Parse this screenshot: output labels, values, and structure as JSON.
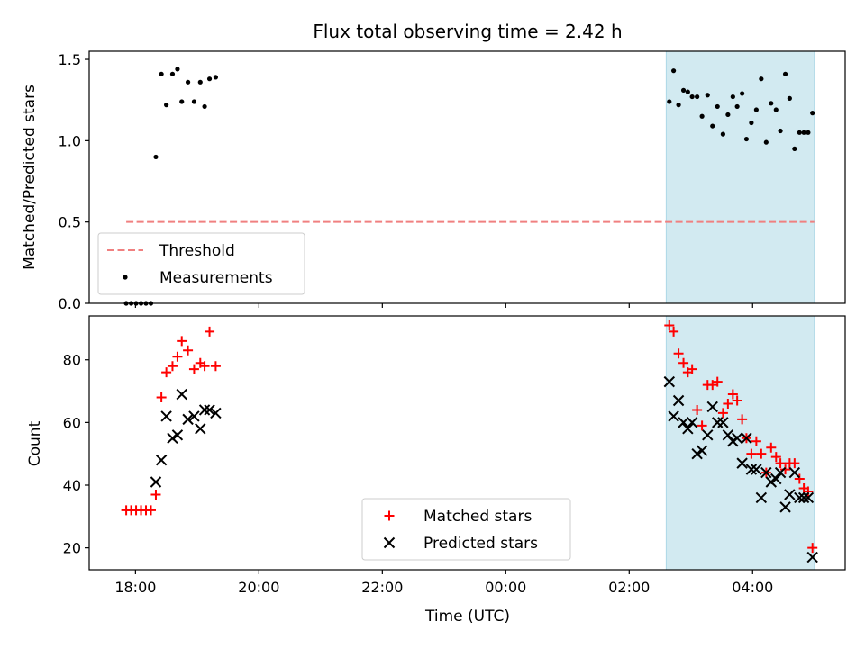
{
  "chart_data": {
    "type": "scatter",
    "title": "Flux total observing time = 2.42 h",
    "xlabel": "Time (UTC)",
    "x_unit": "hours since 18:00 UTC",
    "xlim": [
      -0.75,
      11.5
    ],
    "xticks": [
      0,
      2,
      4,
      6,
      8,
      10
    ],
    "xtick_labels": [
      "18:00",
      "20:00",
      "22:00",
      "00:00",
      "02:00",
      "04:00"
    ],
    "shaded_span": [
      8.6,
      11.0
    ],
    "shade_color": "#add8e6",
    "panels": [
      {
        "ylabel": "Matched/Predicted stars",
        "ylim": [
          0,
          1.55
        ],
        "yticks": [
          0.0,
          0.5,
          1.0,
          1.5
        ],
        "ytick_labels": [
          "0.0",
          "0.5",
          "1.0",
          "1.5"
        ],
        "legend_position": "lower-left",
        "threshold": {
          "name": "Threshold",
          "value": 0.5,
          "x_range": [
            -0.15,
            11.0
          ],
          "color": "#f08080"
        },
        "series": [
          {
            "name": "Measurements",
            "marker": "dot",
            "color": "#000000",
            "x": [
              -0.15,
              -0.07,
              0.01,
              0.09,
              0.17,
              0.25,
              0.33,
              0.42,
              0.5,
              0.6,
              0.68,
              0.75,
              0.85,
              0.95,
              1.05,
              1.12,
              1.2,
              1.3,
              8.65,
              8.72,
              8.8,
              8.88,
              8.95,
              9.02,
              9.1,
              9.18,
              9.27,
              9.35,
              9.43,
              9.52,
              9.6,
              9.68,
              9.75,
              9.83,
              9.9,
              9.98,
              10.06,
              10.14,
              10.22,
              10.3,
              10.38,
              10.45,
              10.53,
              10.6,
              10.68,
              10.76,
              10.83,
              10.9,
              10.97
            ],
            "y": [
              0,
              0,
              0,
              0,
              0,
              0,
              0.9,
              1.41,
              1.22,
              1.41,
              1.44,
              1.24,
              1.36,
              1.24,
              1.36,
              1.21,
              1.38,
              1.39,
              1.24,
              1.43,
              1.22,
              1.31,
              1.3,
              1.27,
              1.27,
              1.15,
              1.28,
              1.09,
              1.21,
              1.04,
              1.16,
              1.27,
              1.21,
              1.29,
              1.01,
              1.11,
              1.19,
              1.38,
              0.99,
              1.23,
              1.19,
              1.06,
              1.41,
              1.26,
              0.95,
              1.05,
              1.05,
              1.05,
              1.17
            ]
          }
        ]
      },
      {
        "ylabel": "Count",
        "ylim": [
          13,
          94
        ],
        "yticks": [
          20,
          40,
          60,
          80
        ],
        "ytick_labels": [
          "20",
          "40",
          "60",
          "80"
        ],
        "legend_position": "lower-center",
        "series": [
          {
            "name": "Matched stars",
            "marker": "plus",
            "color": "#ff0000",
            "x": [
              -0.15,
              -0.07,
              0.01,
              0.09,
              0.17,
              0.25,
              0.33,
              0.42,
              0.5,
              0.6,
              0.68,
              0.75,
              0.85,
              0.95,
              1.05,
              1.12,
              1.2,
              1.3,
              8.65,
              8.72,
              8.8,
              8.88,
              8.95,
              9.02,
              9.1,
              9.18,
              9.27,
              9.35,
              9.43,
              9.52,
              9.6,
              9.68,
              9.75,
              9.83,
              9.9,
              9.98,
              10.06,
              10.14,
              10.22,
              10.3,
              10.38,
              10.45,
              10.53,
              10.6,
              10.68,
              10.76,
              10.83,
              10.9,
              10.97
            ],
            "y": [
              32,
              32,
              32,
              32,
              32,
              32,
              37,
              68,
              76,
              78,
              81,
              86,
              83,
              77,
              79,
              78,
              89,
              78,
              91,
              89,
              82,
              79,
              76,
              77,
              64,
              59,
              72,
              72,
              73,
              63,
              66,
              69,
              67,
              61,
              55,
              50,
              54,
              50,
              44,
              52,
              49,
              47,
              45,
              47,
              47,
              42,
              39,
              38,
              20
            ]
          },
          {
            "name": "Predicted stars",
            "marker": "x",
            "color": "#000000",
            "x": [
              0.33,
              0.42,
              0.5,
              0.6,
              0.68,
              0.75,
              0.85,
              0.95,
              1.05,
              1.12,
              1.2,
              1.3,
              8.65,
              8.72,
              8.8,
              8.88,
              8.95,
              9.02,
              9.1,
              9.18,
              9.27,
              9.35,
              9.43,
              9.52,
              9.6,
              9.68,
              9.75,
              9.83,
              9.9,
              9.98,
              10.06,
              10.14,
              10.22,
              10.3,
              10.38,
              10.45,
              10.53,
              10.6,
              10.68,
              10.76,
              10.83,
              10.9,
              10.97
            ],
            "y": [
              41,
              48,
              62,
              55,
              56,
              69,
              61,
              62,
              58,
              64,
              64,
              63,
              73,
              62,
              67,
              60,
              58,
              60,
              50,
              51,
              56,
              65,
              60,
              60,
              56,
              54,
              55,
              47,
              55,
              45,
              45,
              36,
              44,
              41,
              42,
              44,
              33,
              37,
              44,
              36,
              36,
              36,
              17
            ]
          }
        ]
      }
    ]
  }
}
